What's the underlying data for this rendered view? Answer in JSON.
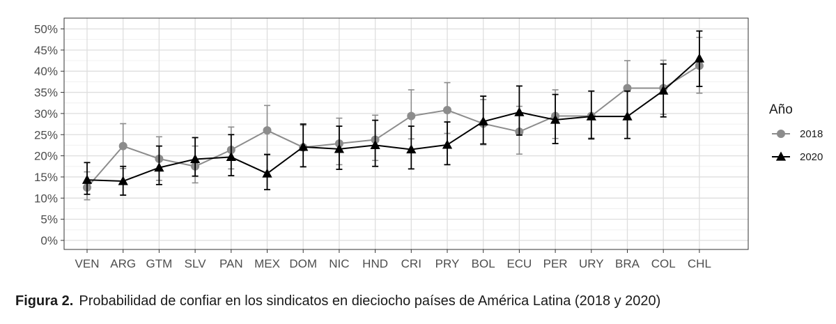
{
  "chart_data": {
    "type": "line",
    "title": "",
    "xlabel": "",
    "ylabel": "",
    "ylim": [
      0,
      50
    ],
    "yticks": [
      "0%",
      "5%",
      "10%",
      "15%",
      "20%",
      "25%",
      "30%",
      "35%",
      "40%",
      "45%",
      "50%"
    ],
    "categories": [
      "VEN",
      "ARG",
      "GTM",
      "SLV",
      "PAN",
      "MEX",
      "DOM",
      "NIC",
      "HND",
      "CRI",
      "PRY",
      "BOL",
      "ECU",
      "PER",
      "URY",
      "BRA",
      "COL",
      "CHL"
    ],
    "legend": {
      "title": "Año",
      "position": "right"
    },
    "grid": true,
    "series": [
      {
        "name": "2018",
        "color": "#8c8c8c",
        "marker": "circle",
        "values": [
          12.5,
          22.3,
          19.3,
          17.5,
          21.4,
          26.0,
          22.0,
          22.9,
          23.8,
          29.4,
          30.8,
          27.6,
          25.7,
          29.4,
          29.4,
          36.0,
          36.0,
          41.3
        ],
        "lower": [
          9.6,
          17.0,
          14.2,
          13.6,
          16.9,
          20.4,
          17.4,
          17.9,
          18.9,
          24.0,
          25.3,
          22.6,
          20.4,
          24.1,
          24.2,
          29.4,
          29.8,
          34.8
        ],
        "upper": [
          16.2,
          27.6,
          24.5,
          22.3,
          26.8,
          31.9,
          27.2,
          28.9,
          29.6,
          35.6,
          37.3,
          33.3,
          31.7,
          35.6,
          35.3,
          42.5,
          42.6,
          48.0
        ]
      },
      {
        "name": "2020",
        "color": "#000000",
        "marker": "triangle",
        "values": [
          14.3,
          14.0,
          17.2,
          19.2,
          19.7,
          15.8,
          22.1,
          21.6,
          22.5,
          21.5,
          22.6,
          28.1,
          30.3,
          28.5,
          29.3,
          29.3,
          35.4,
          43.0
        ],
        "lower": [
          10.9,
          10.7,
          13.2,
          15.2,
          15.3,
          12.0,
          17.4,
          16.8,
          17.5,
          16.9,
          17.9,
          22.8,
          24.9,
          22.9,
          24.0,
          24.1,
          29.2,
          36.4
        ],
        "upper": [
          18.4,
          17.5,
          22.3,
          24.3,
          25.0,
          20.3,
          27.5,
          27.0,
          28.4,
          27.0,
          28.0,
          34.1,
          36.5,
          34.5,
          35.3,
          35.3,
          41.7,
          49.5
        ]
      }
    ]
  },
  "caption": {
    "label": "Figura 2.",
    "text": "Probabilidad de confiar en los sindicatos en dieciocho países de América Latina (2018 y 2020)"
  }
}
